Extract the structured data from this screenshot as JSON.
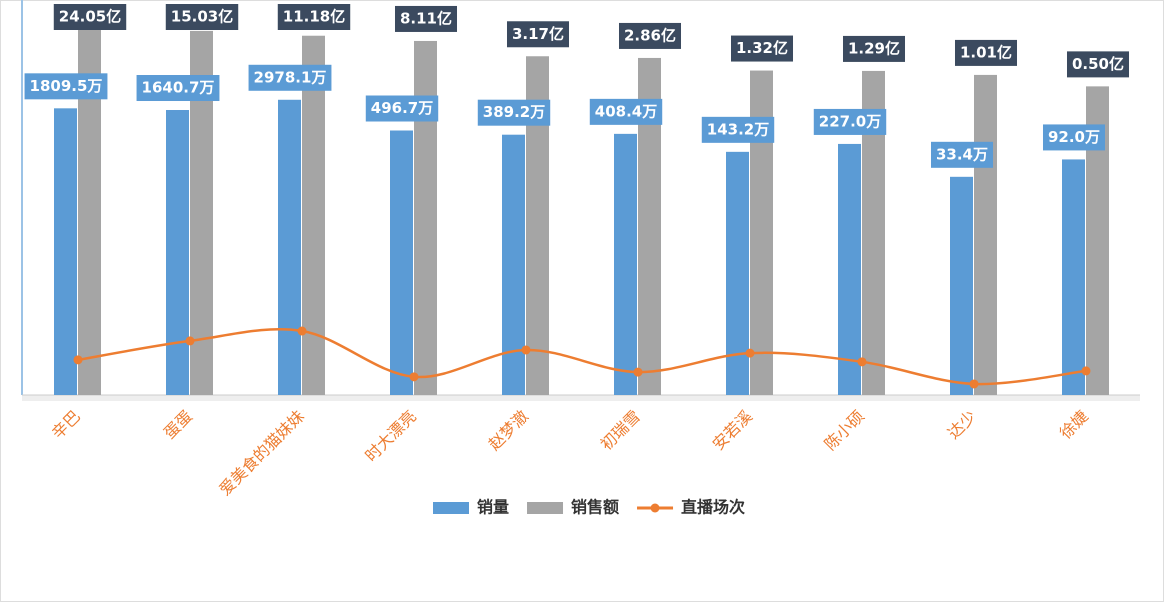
{
  "chart_data": {
    "type": "bar",
    "categories": [
      "辛巴",
      "蛋蛋",
      "爱美食的猫妹妹",
      "时大漂亮",
      "赵梦澈",
      "初瑞雪",
      "安若溪",
      "陈小硕",
      "达少",
      "徐婕"
    ],
    "series": [
      {
        "name": "销量",
        "type": "bar",
        "color": "#5b9bd5",
        "axis": "y",
        "values": [
          1809.5,
          1640.7,
          2978.1,
          496.7,
          389.2,
          408.4,
          143.2,
          227.0,
          33.4,
          92.0
        ],
        "value_labels": [
          "1809.5万",
          "1640.7万",
          "2978.1万",
          "496.7万",
          "389.2万",
          "408.4万",
          "143.2万",
          "227.0万",
          "33.4万",
          "92.0万"
        ],
        "label_color": "#5b9bd5"
      },
      {
        "name": "销售额",
        "type": "bar",
        "color": "#a5a5a5",
        "axis": "y2",
        "values": [
          24.05,
          15.03,
          11.18,
          8.11,
          3.17,
          2.86,
          1.32,
          1.29,
          1.01,
          0.5
        ],
        "value_labels": [
          "24.05亿",
          "15.03亿",
          "11.18亿",
          "8.11亿",
          "3.17亿",
          "2.86亿",
          "1.32亿",
          "1.29亿",
          "1.01亿",
          "0.50亿"
        ],
        "label_color": "#3b4a5f"
      },
      {
        "name": "直播场次",
        "type": "line",
        "color": "#ed7d31",
        "axis": "y3",
        "values": [
          8.9,
          13.7,
          16.2,
          4.6,
          11.4,
          5.8,
          10.6,
          8.4,
          2.8,
          6.1
        ]
      }
    ],
    "ylim": [
      0.0001,
      1000000
    ],
    "y_log": true,
    "y2lim": [
      3e-09,
      100
    ],
    "y2_log": true,
    "y3lim": [
      0,
      100
    ],
    "category_color": "#ed7d31"
  }
}
